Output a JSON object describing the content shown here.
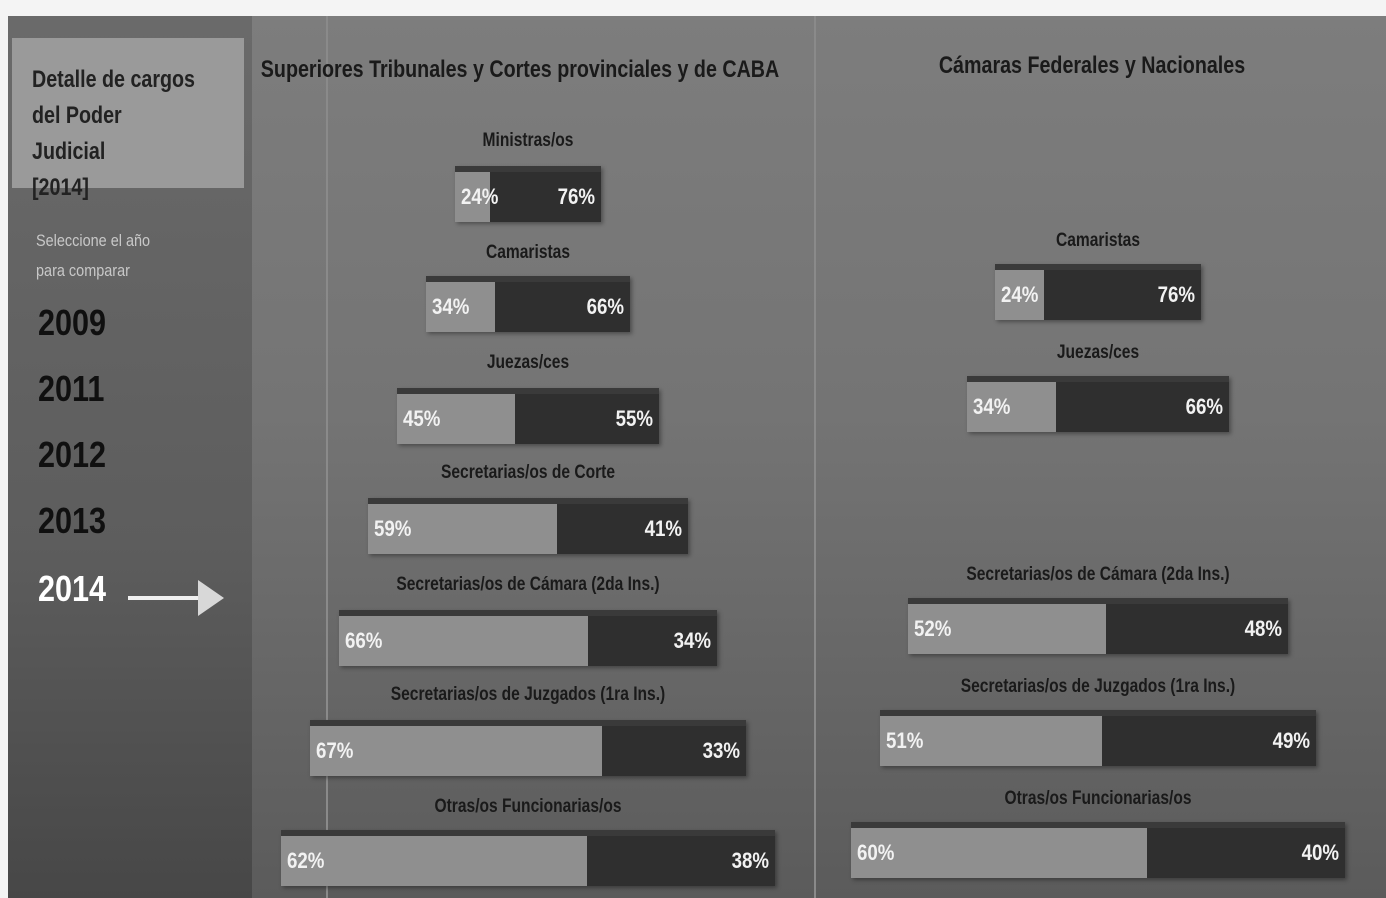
{
  "sidebar": {
    "title_lines": [
      "Detalle de cargos",
      "del Poder Judicial",
      "[2014]"
    ],
    "select_prompt_lines": [
      "Seleccione el año",
      "para comparar"
    ],
    "years": [
      "2009",
      "2011",
      "2012",
      "2013",
      "2014"
    ],
    "selected_year": "2014"
  },
  "colors": {
    "women_segment": "#8f8f8f",
    "men_segment": "#2f2f2f",
    "background": "#747474"
  },
  "chart_data": [
    {
      "type": "bar",
      "stacked": true,
      "orientation": "horizontal",
      "title": "Superiores Tribunales y Cortes provinciales y de CABA",
      "categories": [
        "Ministras/os",
        "Camaristas",
        "Juezas/ces",
        "Secretarias/os de Corte",
        "Secretarias/os de Cámara (2da Ins.)",
        "Secretarias/os de Juzgados (1ra Ins.)",
        "Otras/os Funcionarias/os"
      ],
      "series": [
        {
          "values": [
            24,
            34,
            45,
            59,
            66,
            67,
            62
          ]
        },
        {
          "values": [
            76,
            66,
            55,
            41,
            34,
            33,
            38
          ]
        }
      ],
      "value_labels": [
        [
          "24%",
          "34%",
          "45%",
          "59%",
          "66%",
          "67%",
          "62%"
        ],
        [
          "76%",
          "66%",
          "55%",
          "41%",
          "34%",
          "33%",
          "38%"
        ]
      ]
    },
    {
      "type": "bar",
      "stacked": true,
      "orientation": "horizontal",
      "title": "Cámaras Federales y Nacionales",
      "categories": [
        "Camaristas",
        "Juezas/ces",
        "Secretarias/os de Cámara (2da Ins.)",
        "Secretarias/os de Juzgados (1ra Ins.)",
        "Otras/os Funcionarias/os"
      ],
      "series": [
        {
          "values": [
            24,
            34,
            52,
            51,
            60
          ]
        },
        {
          "values": [
            76,
            66,
            48,
            49,
            40
          ]
        }
      ],
      "value_labels": [
        [
          "24%",
          "34%",
          "52%",
          "51%",
          "60%"
        ],
        [
          "76%",
          "66%",
          "48%",
          "49%",
          "40%"
        ]
      ]
    }
  ]
}
